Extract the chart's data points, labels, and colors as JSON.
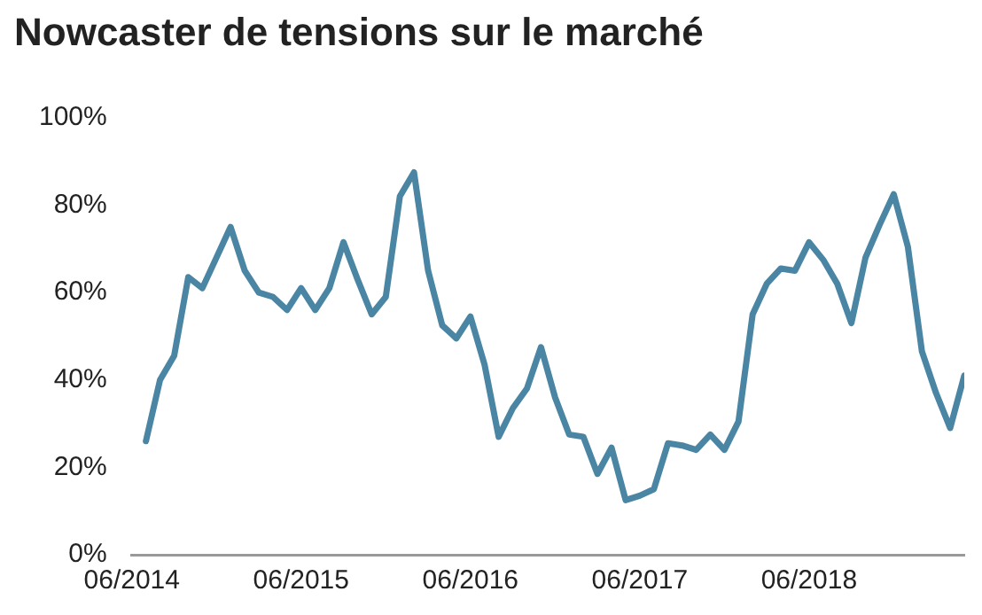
{
  "chart_data": {
    "type": "line",
    "title": "Nowcaster de tensions sur le marché",
    "x": [
      "2014-07",
      "2014-08",
      "2014-09",
      "2014-10",
      "2014-11",
      "2014-12",
      "2015-01",
      "2015-02",
      "2015-03",
      "2015-04",
      "2015-05",
      "2015-06",
      "2015-07",
      "2015-08",
      "2015-09",
      "2015-10",
      "2015-11",
      "2015-12",
      "2016-01",
      "2016-02",
      "2016-03",
      "2016-04",
      "2016-05",
      "2016-06",
      "2016-07",
      "2016-08",
      "2016-09",
      "2016-10",
      "2016-11",
      "2016-12",
      "2017-01",
      "2017-02",
      "2017-03",
      "2017-04",
      "2017-05",
      "2017-06",
      "2017-07",
      "2017-08",
      "2017-09",
      "2017-10",
      "2017-11",
      "2017-12",
      "2018-01",
      "2018-02",
      "2018-03",
      "2018-04",
      "2018-05",
      "2018-06",
      "2018-07",
      "2018-08",
      "2018-09",
      "2018-10",
      "2018-11",
      "2018-12",
      "2019-01",
      "2019-02",
      "2019-03",
      "2019-04",
      "2019-05"
    ],
    "series": [
      {
        "color": "#4a86a4",
        "values": [
          26,
          40,
          45.5,
          63.5,
          61,
          68,
          75,
          65,
          60,
          59,
          56,
          61,
          56,
          61,
          71.5,
          63,
          55,
          59,
          82,
          87.5,
          65,
          52.5,
          49.5,
          54.5,
          43.5,
          27,
          33.5,
          38,
          47.5,
          36,
          27.5,
          27,
          18.5,
          24.5,
          12.5,
          13.5,
          15,
          25.5,
          25,
          24,
          27.5,
          24,
          30.5,
          55,
          62,
          65.5,
          65,
          71.5,
          67.5,
          62,
          53,
          68,
          75.5,
          82.5,
          70.5,
          46.5,
          37,
          29,
          41
        ]
      }
    ],
    "xlim": [
      "2014-06",
      "2019-05"
    ],
    "xticks": [
      {
        "value": "2014-06",
        "label": "06/2014"
      },
      {
        "value": "2015-06",
        "label": "06/2015"
      },
      {
        "value": "2016-06",
        "label": "06/2016"
      },
      {
        "value": "2017-06",
        "label": "06/2017"
      },
      {
        "value": "2018-06",
        "label": "06/2018"
      }
    ],
    "ylim": [
      0,
      100
    ],
    "yticks": [
      {
        "value": 0,
        "label": "0%"
      },
      {
        "value": 20,
        "label": "20%"
      },
      {
        "value": 40,
        "label": "40%"
      },
      {
        "value": 60,
        "label": "60%"
      },
      {
        "value": 80,
        "label": "80%"
      },
      {
        "value": 100,
        "label": "100%"
      }
    ],
    "grid": false,
    "legend": false,
    "marker": "none",
    "line_style": "solid"
  }
}
